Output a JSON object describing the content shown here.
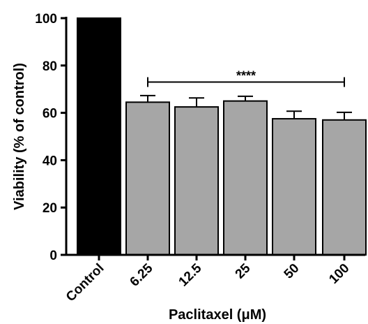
{
  "chart_data": {
    "type": "bar",
    "categories": [
      "Control",
      "6.25",
      "12.5",
      "25",
      "50",
      "100"
    ],
    "values": [
      100,
      64.5,
      62.5,
      65,
      57.5,
      57
    ],
    "errors": [
      0,
      2.8,
      3.8,
      2,
      3.2,
      3.2
    ],
    "colors": {
      "control_bar": "#000000",
      "treatment_bar": "#a6a6a6",
      "stroke": "#000000"
    },
    "xlabel": "Paclitaxel (μM)",
    "ylabel": "Viability (% of control)",
    "ylim": [
      0,
      100
    ],
    "yticks": [
      0,
      20,
      40,
      60,
      80,
      100
    ],
    "significance": {
      "label": "****",
      "from_category": "6.25",
      "to_category": "100",
      "y": 73
    },
    "grid": false
  }
}
